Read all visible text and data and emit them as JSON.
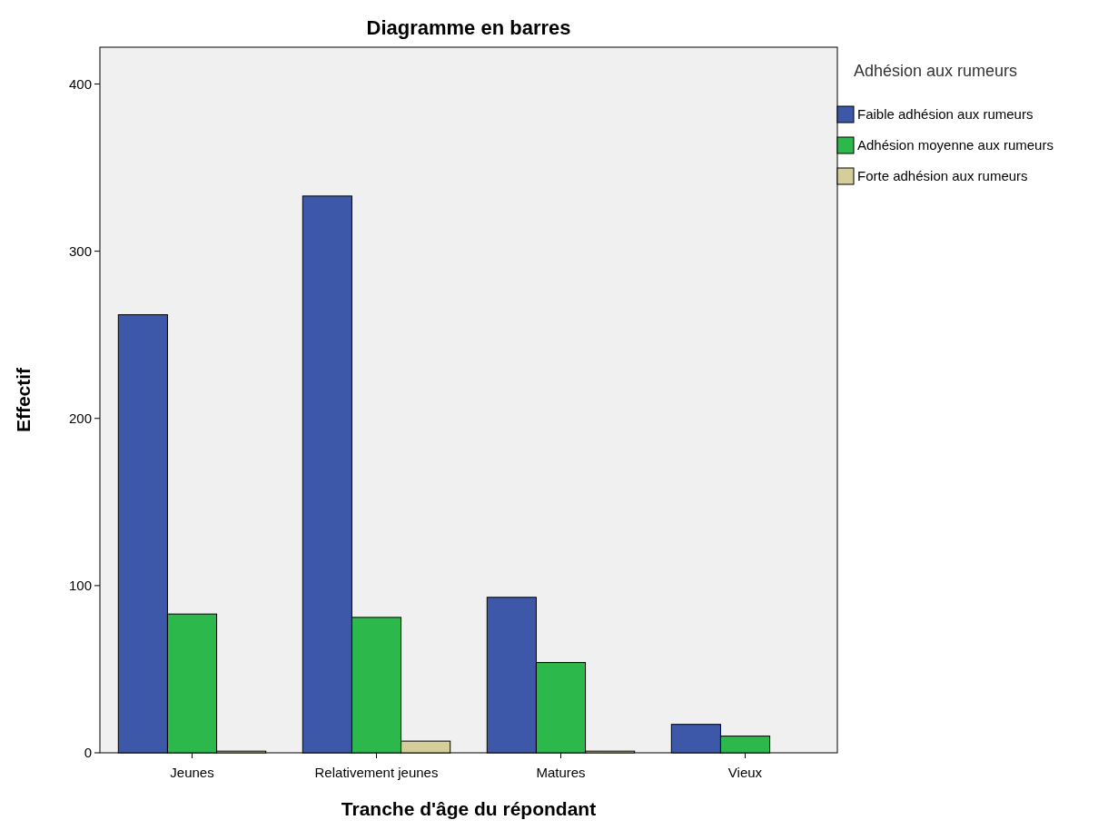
{
  "chart_data": {
    "type": "bar",
    "title": "Diagramme en barres",
    "xlabel": "Tranche d'âge du répondant",
    "ylabel": "Effectif",
    "legend_title": "Adhésion aux rumeurs",
    "legend": "right",
    "categories": [
      "Jeunes",
      "Relativement jeunes",
      "Matures",
      "Vieux"
    ],
    "series": [
      {
        "name": "Faible adhésion aux rumeurs",
        "color": "#3d58a8",
        "values": [
          262,
          333,
          93,
          17
        ]
      },
      {
        "name": "Adhésion moyenne aux rumeurs",
        "color": "#2db84b",
        "values": [
          83,
          81,
          54,
          10
        ]
      },
      {
        "name": "Forte adhésion aux rumeurs",
        "color": "#d4cf9a",
        "values": [
          1,
          7,
          1,
          0
        ]
      }
    ],
    "ylim": [
      0,
      422
    ],
    "yticks": [
      0,
      100,
      200,
      300,
      400
    ],
    "grid": false
  }
}
